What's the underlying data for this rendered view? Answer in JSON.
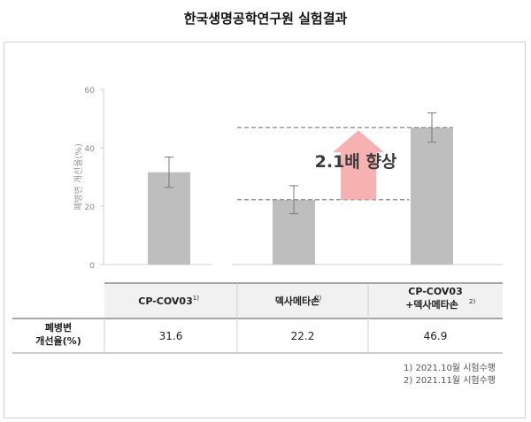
{
  "title": "한국생명공학연구원 실험결과",
  "annotation": "2.1배 향상",
  "chart_data": {
    "type": "bar",
    "categories": [
      "CP-COV03",
      "덱사메타손",
      "CP-COV03 +덱사메타손"
    ],
    "values": [
      31.6,
      22.2,
      46.9
    ],
    "error": [
      5.2,
      4.8,
      5.0
    ],
    "ylabel": "폐병변 개선율(%)",
    "ylim": [
      0,
      60
    ],
    "yticks": [
      "0",
      "20",
      "40",
      "60"
    ],
    "bar_color": "#bebebe",
    "arrow_color": "#f4a3a3",
    "table": {
      "columns": [
        {
          "name": "CP-COV03",
          "sup": "1)"
        },
        {
          "name": "덱사메타손",
          "sup": "2)"
        },
        {
          "line1": "CP-COV03",
          "name": "+덱사메타손",
          "sup": "2)"
        }
      ],
      "row_header": [
        "폐병변",
        "개선율(%)"
      ],
      "row_values": [
        "31.6",
        "22.2",
        "46.9"
      ]
    }
  },
  "footnotes": [
    "1)  2021.10월 시험수행",
    "2)  2021.11월 시험수행"
  ]
}
